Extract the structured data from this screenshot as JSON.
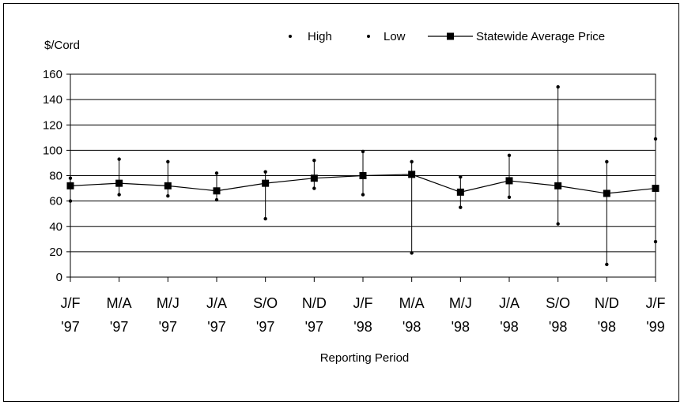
{
  "chart_data": {
    "type": "line",
    "ylabel": "$/Cord",
    "xlabel": "Reporting Period",
    "ylim": [
      0,
      160
    ],
    "yticks": [
      0,
      20,
      40,
      60,
      80,
      100,
      120,
      140,
      160
    ],
    "grid": "horizontal",
    "legend_position": "top",
    "categories": [
      [
        "J/F",
        "'97"
      ],
      [
        "M/A",
        "'97"
      ],
      [
        "M/J",
        "'97"
      ],
      [
        "J/A",
        "'97"
      ],
      [
        "S/O",
        "'97"
      ],
      [
        "N/D",
        "'97"
      ],
      [
        "J/F",
        "'98"
      ],
      [
        "M/A",
        "'98"
      ],
      [
        "M/J",
        "'98"
      ],
      [
        "J/A",
        "'98"
      ],
      [
        "S/O",
        "'98"
      ],
      [
        "N/D",
        "'98"
      ],
      [
        "J/F",
        "'99"
      ]
    ],
    "series": [
      {
        "name": "High",
        "marker": "dot",
        "values": [
          78,
          93,
          91,
          82,
          83,
          92,
          99,
          91,
          79,
          96,
          150,
          91,
          109
        ]
      },
      {
        "name": "Low",
        "marker": "dot",
        "values": [
          60,
          65,
          64,
          61,
          46,
          70,
          65,
          19,
          55,
          63,
          42,
          10,
          28
        ]
      },
      {
        "name": "Statewide Average Price",
        "marker": "square",
        "values": [
          72,
          74,
          72,
          68,
          74,
          78,
          80,
          81,
          67,
          76,
          72,
          66,
          70
        ]
      }
    ]
  }
}
